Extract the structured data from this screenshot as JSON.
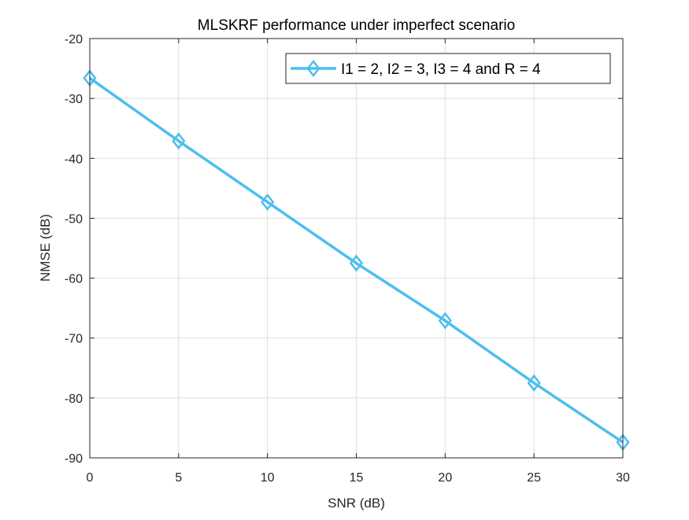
{
  "colors": {
    "series": "#4DBEEE",
    "axis": "#262626",
    "grid": "#DFDFDF",
    "background": "#FFFFFF"
  },
  "chart_data": {
    "type": "line",
    "title": "MLSKRF performance under imperfect scenario",
    "xlabel": "SNR (dB)",
    "ylabel": "NMSE (dB)",
    "xlim": [
      0,
      30
    ],
    "ylim": [
      -90,
      -20
    ],
    "xticks": [
      0,
      5,
      10,
      15,
      20,
      25,
      30
    ],
    "yticks": [
      -90,
      -80,
      -70,
      -60,
      -50,
      -40,
      -30,
      -20
    ],
    "xtick_labels": [
      "0",
      "5",
      "10",
      "15",
      "20",
      "25",
      "30"
    ],
    "ytick_labels": [
      "-90",
      "-80",
      "-70",
      "-60",
      "-50",
      "-40",
      "-30",
      "-20"
    ],
    "grid": true,
    "box": true,
    "legend": {
      "location": "top-right",
      "entries": [
        "I1 = 2, I2 = 3, I3 = 4 and R = 4"
      ]
    },
    "series": [
      {
        "name": "I1 = 2, I2 = 3, I3 = 4 and R = 4",
        "marker": "diamond",
        "color": "#4DBEEE",
        "x": [
          0,
          5,
          10,
          15,
          20,
          25,
          30
        ],
        "y": [
          -26.6,
          -37.1,
          -47.3,
          -57.5,
          -67.1,
          -77.5,
          -87.4
        ]
      }
    ]
  }
}
